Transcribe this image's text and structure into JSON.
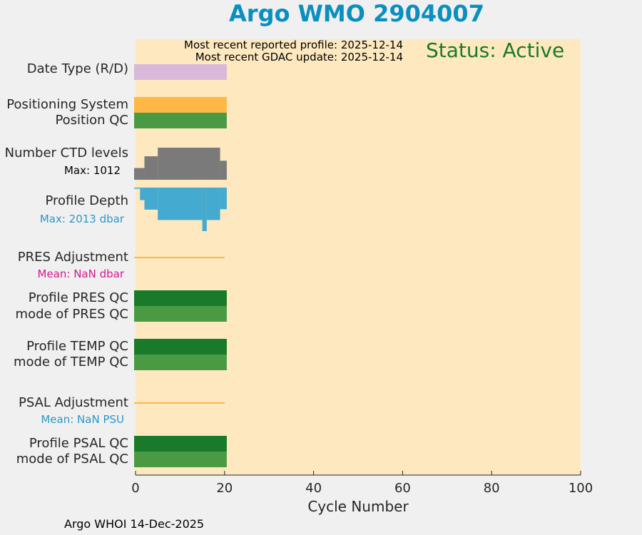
{
  "title": "Argo WMO 2904007",
  "header": {
    "recent_profile": "Most recent reported profile: 2025-12-14",
    "recent_gdac": "Most recent GDAC update: 2025-12-14",
    "status": "Status: Active"
  },
  "rows": {
    "date_type": "Date Type (R/D)",
    "positioning": "Positioning System",
    "position_qc": "Position QC",
    "ctd_levels": "Number CTD levels",
    "ctd_max": "Max: 1012",
    "profile_depth": "Profile Depth",
    "depth_max": "Max: 2013 dbar",
    "pres_adj": "PRES Adjustment",
    "pres_mean": "Mean:  NaN dbar",
    "prof_pres_qc": "Profile PRES QC",
    "mode_pres_qc": "mode of PRES QC",
    "prof_temp_qc": "Profile TEMP QC",
    "mode_temp_qc": "mode of TEMP QC",
    "psal_adj": "PSAL Adjustment",
    "psal_mean": "Mean:  NaN PSU",
    "prof_psal_qc": "Profile PSAL QC",
    "mode_psal_qc": "mode of PSAL QC"
  },
  "footer": "Argo WHOI 14-Dec-2025",
  "colors": {
    "background": "#fde8c0",
    "date_type": "#d9b8d9",
    "positioning": "#ffb845",
    "qc_good": "#4a9a44",
    "qc_profile": "#187a2a",
    "ctd": "#7a7a7a",
    "depth": "#44aad0",
    "adjustment": "#ffb845",
    "title": "#0a8fbf",
    "status": "#1a7a26",
    "pres_mean": "#d6168a",
    "psal_mean": "#2a98c8"
  },
  "chart_data": {
    "type": "bar",
    "title": "Argo WMO 2904007",
    "xlabel": "Cycle Number",
    "ylabel": "",
    "xlim": [
      0,
      100
    ],
    "xticks": [
      0,
      20,
      40,
      60,
      80,
      100
    ],
    "xtick_labels": [
      "0",
      "20",
      "40",
      "60",
      "80",
      "100"
    ],
    "cycles": [
      0,
      20
    ],
    "ctd_levels_max": 1012,
    "profile_depth_max_dbar": 2013,
    "ctd_profile_step": [
      {
        "from": 0,
        "to": 2,
        "levels": 370
      },
      {
        "from": 2,
        "to": 5,
        "levels": 740
      },
      {
        "from": 5,
        "to": 19,
        "levels": 1012
      },
      {
        "from": 19,
        "to": 20,
        "levels": 600
      }
    ],
    "depth_profile_step": [
      {
        "from": 0,
        "to": 1,
        "depth": 50
      },
      {
        "from": 1,
        "to": 2,
        "depth": 580
      },
      {
        "from": 2,
        "to": 5,
        "depth": 1020
      },
      {
        "from": 5,
        "to": 15,
        "depth": 1500
      },
      {
        "from": 15,
        "to": 16,
        "depth": 2013
      },
      {
        "from": 16,
        "to": 19,
        "depth": 1500
      },
      {
        "from": 19,
        "to": 20,
        "depth": 1000
      }
    ],
    "pres_adjustment_mean_dbar": "NaN",
    "psal_adjustment_mean_psu": "NaN"
  }
}
